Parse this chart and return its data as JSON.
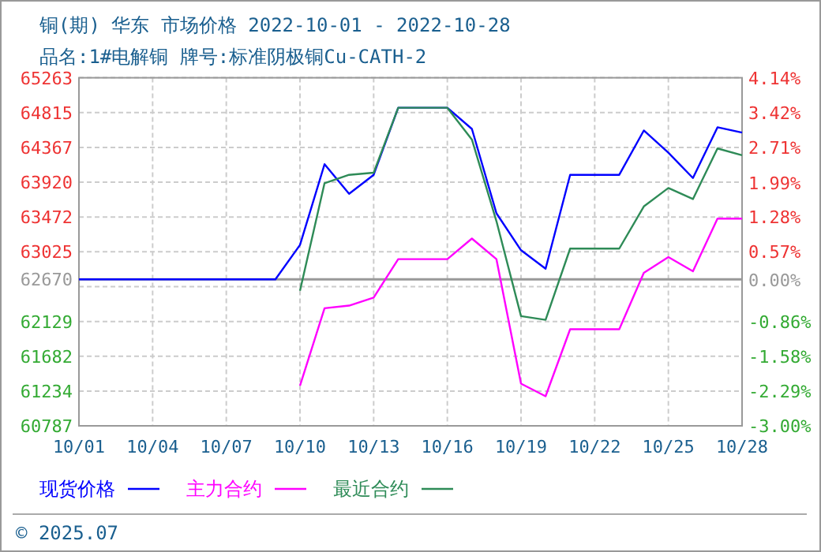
{
  "chart_data": {
    "type": "line",
    "title": "铜(期) 华东 市场价格 2022-10-01 - 2022-10-28",
    "subtitle": "品名:1#电解铜 牌号:标准阴极铜Cu-CATH-2",
    "xlim": [
      "2022-10-01",
      "2022-10-28"
    ],
    "xticks": [
      {
        "value": "2022-10-01",
        "label": "10/01"
      },
      {
        "value": "2022-10-04",
        "label": "10/04"
      },
      {
        "value": "2022-10-07",
        "label": "10/07"
      },
      {
        "value": "2022-10-10",
        "label": "10/10"
      },
      {
        "value": "2022-10-13",
        "label": "10/13"
      },
      {
        "value": "2022-10-16",
        "label": "10/16"
      },
      {
        "value": "2022-10-19",
        "label": "10/19"
      },
      {
        "value": "2022-10-22",
        "label": "10/22"
      },
      {
        "value": "2022-10-25",
        "label": "10/25"
      },
      {
        "value": "2022-10-28",
        "label": "10/28"
      }
    ],
    "ylim": [
      60787,
      65263
    ],
    "yticks": [
      65263,
      64815,
      64367,
      63920,
      63472,
      63025,
      62670,
      {
        "value": 62577,
        "label": null
      },
      62129,
      61682,
      61234,
      60787
    ],
    "y2lim": [
      -3.0,
      4.14
    ],
    "y2ticks": [
      {
        "value": 4.14,
        "label": "4.14%"
      },
      {
        "value": 3.42,
        "label": "3.42%"
      },
      {
        "value": 2.71,
        "label": "2.71%"
      },
      {
        "value": 1.99,
        "label": "1.99%"
      },
      {
        "value": 1.28,
        "label": "1.28%"
      },
      {
        "value": 0.57,
        "label": "0.57%"
      },
      {
        "value": 0,
        "label": "0.00%"
      },
      {
        "value": -0.86,
        "label": "-0.86%"
      },
      {
        "value": -1.58,
        "label": "-1.58%"
      },
      {
        "value": -2.29,
        "label": "-2.29%"
      },
      {
        "value": -3.0,
        "label": "-3.00%"
      }
    ],
    "ref_lines": [
      {
        "axis": "y",
        "value": 62670,
        "color": "#999999"
      }
    ],
    "grid": true,
    "legend": "bottom",
    "series": [
      {
        "name": "现货价格",
        "color": "#0000ff",
        "x": [
          "2022-10-01",
          "2022-10-09",
          "2022-10-10",
          "2022-10-11",
          "2022-10-12",
          "2022-10-13",
          "2022-10-14",
          "2022-10-15",
          "2022-10-16",
          "2022-10-17",
          "2022-10-18",
          "2022-10-19",
          "2022-10-20",
          "2022-10-21",
          "2022-10-22",
          "2022-10-23",
          "2022-10-24",
          "2022-10-25",
          "2022-10-26",
          "2022-10-27",
          "2022-10-28"
        ],
        "values": [
          62670,
          62670,
          63113,
          64151,
          63771,
          64015,
          64877,
          64877,
          64877,
          64605,
          63520,
          63045,
          62808,
          64015,
          64015,
          64015,
          64585,
          64300,
          63974,
          64626,
          64558
        ]
      },
      {
        "name": "主力合约",
        "color": "#ff00ff",
        "x": [
          "2022-10-10",
          "2022-10-11",
          "2022-10-12",
          "2022-10-13",
          "2022-10-14",
          "2022-10-15",
          "2022-10-16",
          "2022-10-17",
          "2022-10-18",
          "2022-10-19",
          "2022-10-20",
          "2022-10-21",
          "2022-10-22",
          "2022-10-23",
          "2022-10-24",
          "2022-10-25",
          "2022-10-26",
          "2022-10-27",
          "2022-10-28"
        ],
        "values": [
          61302,
          62299,
          62333,
          62435,
          62930,
          62930,
          62930,
          63195,
          62930,
          61330,
          61167,
          62029,
          62029,
          62029,
          62754,
          62957,
          62774,
          63452,
          63452
        ]
      },
      {
        "name": "最近合约",
        "color": "#2e8b57",
        "x": [
          "2022-10-10",
          "2022-10-11",
          "2022-10-12",
          "2022-10-13",
          "2022-10-14",
          "2022-10-15",
          "2022-10-16",
          "2022-10-17",
          "2022-10-18",
          "2022-10-19",
          "2022-10-20",
          "2022-10-21",
          "2022-10-22",
          "2022-10-23",
          "2022-10-24",
          "2022-10-25",
          "2022-10-26",
          "2022-10-27",
          "2022-10-28"
        ],
        "values": [
          62523,
          63907,
          64015,
          64042,
          64877,
          64877,
          64877,
          64469,
          63418,
          62198,
          62150,
          63066,
          63066,
          63066,
          63608,
          63846,
          63703,
          64354,
          64266
        ]
      }
    ],
    "annotations": [
      "© 2025.07"
    ]
  }
}
